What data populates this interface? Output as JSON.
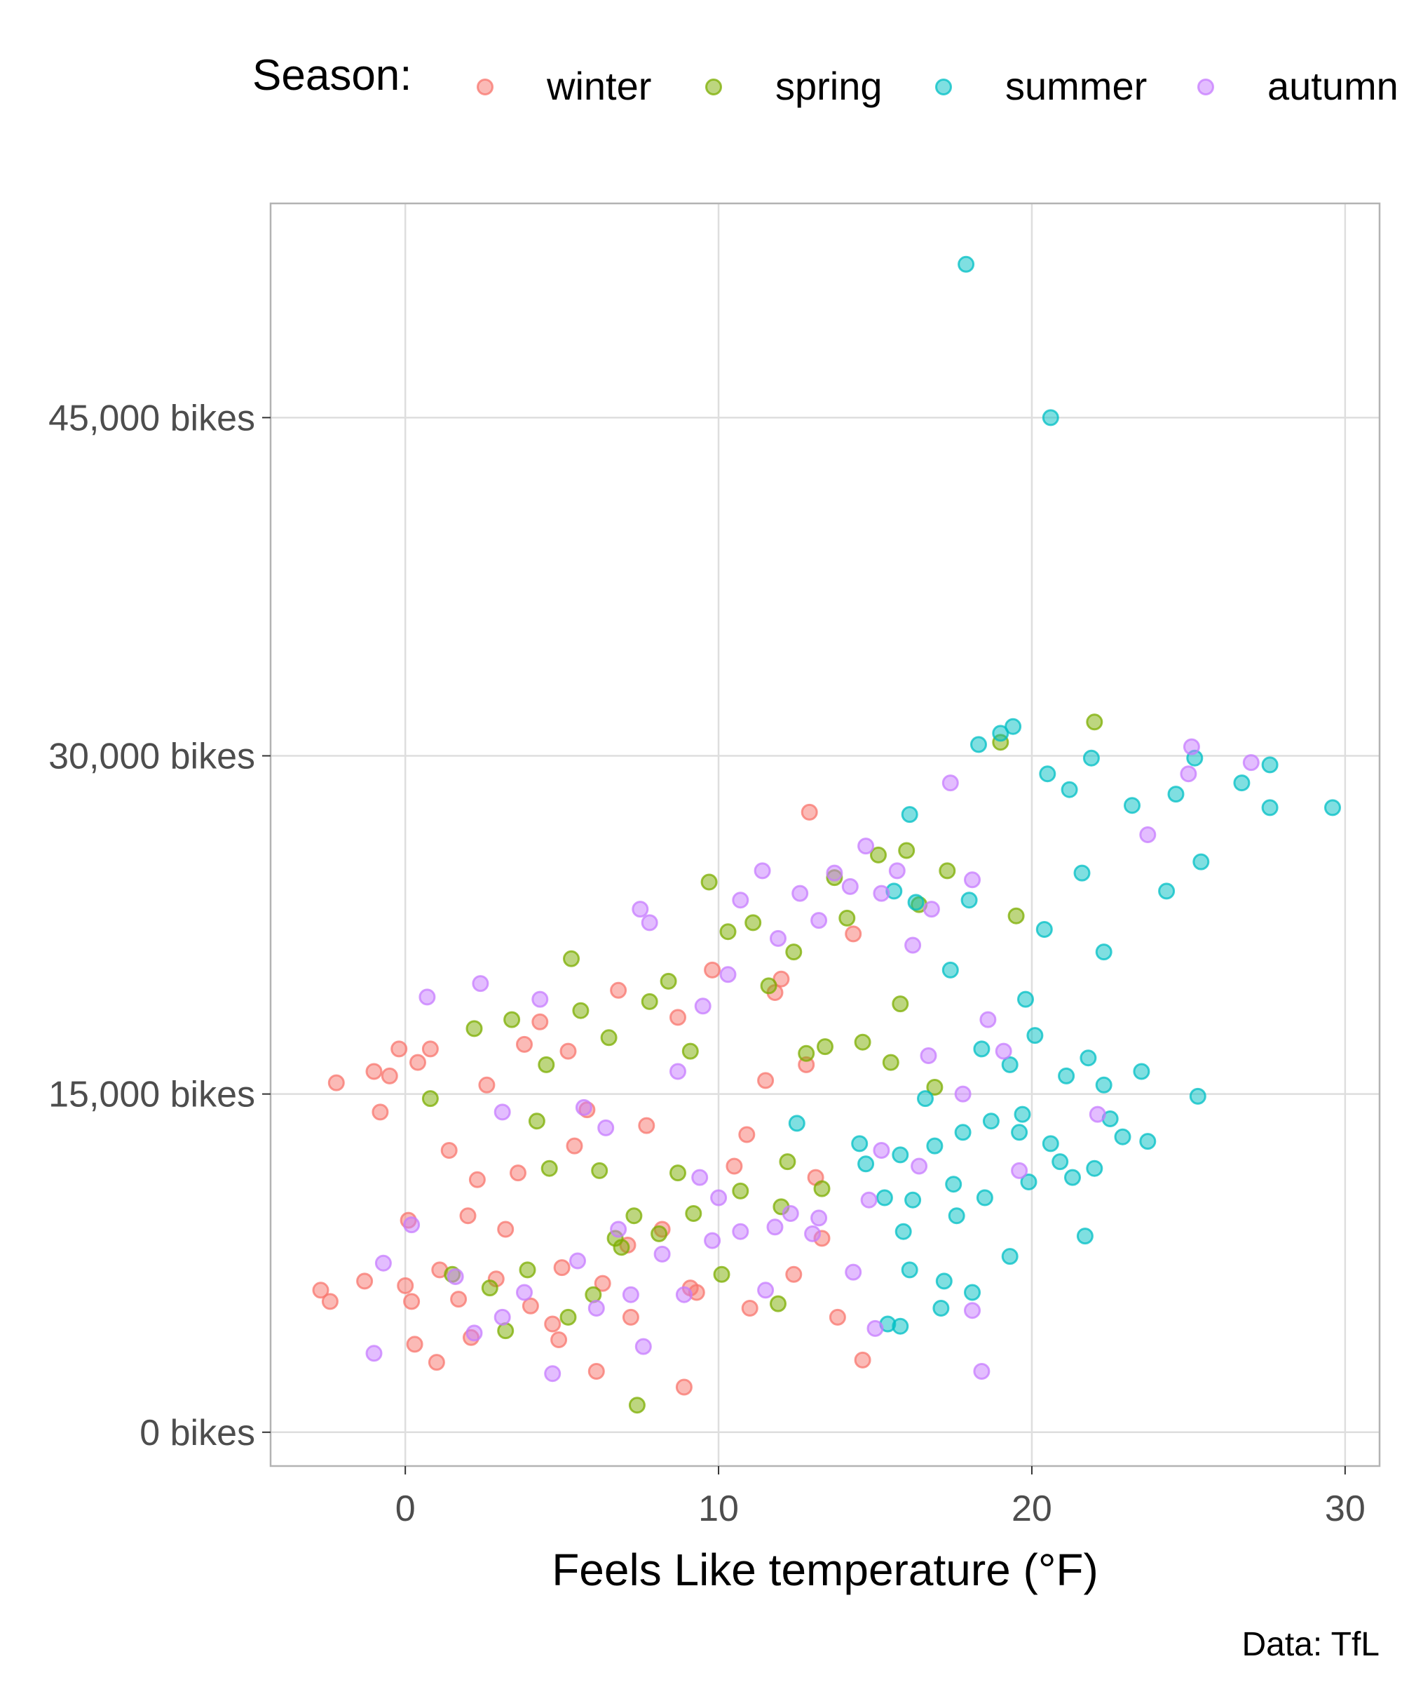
{
  "chart_data": {
    "type": "scatter",
    "xlabel": "Feels Like temperature (°F)",
    "ylabel": "",
    "caption": "Data: TfL",
    "xlim": [
      -4.3,
      31.1
    ],
    "ylim": [
      -1500,
      54500
    ],
    "x_ticks": [
      0,
      10,
      20,
      30
    ],
    "y_ticks": [
      0,
      15000,
      30000,
      45000
    ],
    "y_tick_labels": [
      "0 bikes",
      "15,000 bikes",
      "30,000 bikes",
      "45,000 bikes"
    ],
    "grid": true,
    "legend": {
      "title": "Season:",
      "position": "top"
    },
    "series": [
      {
        "name": "winter",
        "color": "#F8766D",
        "points": [
          [
            -2.7,
            6300
          ],
          [
            -2.4,
            5800
          ],
          [
            -2.2,
            15500
          ],
          [
            -1.3,
            6700
          ],
          [
            -1,
            16000
          ],
          [
            -0.8,
            14200
          ],
          [
            -0.5,
            15800
          ],
          [
            -0.2,
            17000
          ],
          [
            0,
            6500
          ],
          [
            0.2,
            5800
          ],
          [
            0.1,
            9400
          ],
          [
            0.4,
            16400
          ],
          [
            0.8,
            17000
          ],
          [
            1.1,
            7200
          ],
          [
            1.4,
            12500
          ],
          [
            1.7,
            5900
          ],
          [
            2,
            9600
          ],
          [
            2.3,
            11200
          ],
          [
            2.6,
            15400
          ],
          [
            2.9,
            6800
          ],
          [
            3.2,
            9000
          ],
          [
            3.6,
            11500
          ],
          [
            4,
            5600
          ],
          [
            4.3,
            18200
          ],
          [
            4.7,
            4800
          ],
          [
            5,
            7300
          ],
          [
            5.4,
            12700
          ],
          [
            5.8,
            14300
          ],
          [
            6.3,
            6600
          ],
          [
            6.8,
            19600
          ],
          [
            7.2,
            5100
          ],
          [
            7.7,
            13600
          ],
          [
            8.2,
            9000
          ],
          [
            8.7,
            18400
          ],
          [
            9.3,
            6200
          ],
          [
            9.8,
            20500
          ],
          [
            10.5,
            11800
          ],
          [
            11,
            5500
          ],
          [
            11.5,
            15600
          ],
          [
            12,
            20100
          ],
          [
            12.4,
            7000
          ],
          [
            12.8,
            16300
          ],
          [
            13.3,
            8600
          ],
          [
            13.8,
            5100
          ],
          [
            12.9,
            27500
          ],
          [
            14.6,
            3200
          ],
          [
            14.3,
            22100
          ],
          [
            10.9,
            13200
          ],
          [
            7.1,
            8300
          ],
          [
            1,
            3100
          ],
          [
            0.3,
            3900
          ],
          [
            3.8,
            17200
          ],
          [
            5.2,
            16900
          ],
          [
            6.1,
            2700
          ],
          [
            8.9,
            2000
          ],
          [
            11.8,
            19500
          ],
          [
            9.1,
            6400
          ],
          [
            2.1,
            4200
          ],
          [
            4.9,
            4100
          ],
          [
            13.1,
            11300
          ]
        ]
      },
      {
        "name": "spring",
        "color": "#7CAE00",
        "points": [
          [
            0.8,
            14800
          ],
          [
            1.5,
            7000
          ],
          [
            2.2,
            17900
          ],
          [
            2.7,
            6400
          ],
          [
            3.4,
            18300
          ],
          [
            3.9,
            7200
          ],
          [
            4.2,
            13800
          ],
          [
            4.6,
            11700
          ],
          [
            5.2,
            5100
          ],
          [
            5.6,
            18700
          ],
          [
            6,
            6100
          ],
          [
            6.5,
            17500
          ],
          [
            6.9,
            8200
          ],
          [
            7.4,
            1200
          ],
          [
            7.8,
            19100
          ],
          [
            8.1,
            8800
          ],
          [
            8.7,
            11500
          ],
          [
            9.1,
            16900
          ],
          [
            9.7,
            24400
          ],
          [
            10.3,
            22200
          ],
          [
            10.7,
            10700
          ],
          [
            11.1,
            22600
          ],
          [
            11.6,
            19800
          ],
          [
            12,
            10000
          ],
          [
            12.4,
            21300
          ],
          [
            12.8,
            16800
          ],
          [
            13.3,
            10800
          ],
          [
            13.7,
            24600
          ],
          [
            14.1,
            22800
          ],
          [
            14.6,
            17300
          ],
          [
            15.1,
            25600
          ],
          [
            15.5,
            16400
          ],
          [
            16,
            25800
          ],
          [
            16.4,
            23400
          ],
          [
            16.9,
            15300
          ],
          [
            17.3,
            24900
          ],
          [
            19,
            30600
          ],
          [
            19.5,
            22900
          ],
          [
            22,
            31500
          ],
          [
            8.4,
            20000
          ],
          [
            5.3,
            21000
          ],
          [
            3.2,
            4500
          ],
          [
            6.7,
            8600
          ],
          [
            9.2,
            9700
          ],
          [
            11.9,
            5700
          ],
          [
            4.5,
            16300
          ],
          [
            7.3,
            9600
          ],
          [
            10.1,
            7000
          ],
          [
            13.4,
            17100
          ],
          [
            15.8,
            19000
          ],
          [
            12.2,
            12000
          ],
          [
            6.2,
            11600
          ]
        ]
      },
      {
        "name": "summer",
        "color": "#00BFC4",
        "points": [
          [
            17.9,
            51800
          ],
          [
            20.6,
            45000
          ],
          [
            18.3,
            30500
          ],
          [
            19,
            31000
          ],
          [
            19.4,
            31300
          ],
          [
            20.5,
            29200
          ],
          [
            21.2,
            28500
          ],
          [
            21.9,
            29900
          ],
          [
            23.2,
            27800
          ],
          [
            24.6,
            28300
          ],
          [
            25.2,
            29900
          ],
          [
            26.7,
            28800
          ],
          [
            27.6,
            29600
          ],
          [
            27.6,
            27700
          ],
          [
            29.6,
            27700
          ],
          [
            25.4,
            25300
          ],
          [
            24.3,
            24000
          ],
          [
            22.3,
            21300
          ],
          [
            19.8,
            19200
          ],
          [
            17.4,
            20500
          ],
          [
            16.3,
            23500
          ],
          [
            16.1,
            27400
          ],
          [
            15.6,
            24000
          ],
          [
            18,
            23600
          ],
          [
            20.4,
            22300
          ],
          [
            21.6,
            24800
          ],
          [
            18.4,
            17000
          ],
          [
            19.3,
            16300
          ],
          [
            20.1,
            17600
          ],
          [
            21.1,
            15800
          ],
          [
            21.8,
            16600
          ],
          [
            22.3,
            15400
          ],
          [
            23.5,
            16000
          ],
          [
            25.3,
            14900
          ],
          [
            22.9,
            13100
          ],
          [
            23.7,
            12900
          ],
          [
            22,
            11700
          ],
          [
            19.9,
            11100
          ],
          [
            18.5,
            10400
          ],
          [
            17.5,
            11000
          ],
          [
            16.2,
            10300
          ],
          [
            15.3,
            10400
          ],
          [
            14.7,
            11900
          ],
          [
            15.8,
            12300
          ],
          [
            16.9,
            12700
          ],
          [
            17.8,
            13300
          ],
          [
            18.7,
            13800
          ],
          [
            19.7,
            14100
          ],
          [
            20.6,
            12800
          ],
          [
            21.3,
            11300
          ],
          [
            16.1,
            7200
          ],
          [
            17.2,
            6700
          ],
          [
            18.1,
            6200
          ],
          [
            15.4,
            4800
          ],
          [
            15.8,
            4700
          ],
          [
            21.7,
            8700
          ],
          [
            19.3,
            7800
          ],
          [
            17.1,
            5500
          ],
          [
            12.5,
            13700
          ],
          [
            16.6,
            14800
          ],
          [
            19.6,
            13300
          ],
          [
            14.5,
            12800
          ],
          [
            17.6,
            9600
          ],
          [
            20.9,
            12000
          ],
          [
            22.5,
            13900
          ],
          [
            15.9,
            8900
          ]
        ]
      },
      {
        "name": "autumn",
        "color": "#C77CFF",
        "points": [
          [
            0.2,
            9200
          ],
          [
            -0.7,
            7500
          ],
          [
            -1,
            3500
          ],
          [
            0.7,
            19300
          ],
          [
            2.4,
            19900
          ],
          [
            3.1,
            14200
          ],
          [
            4.3,
            19200
          ],
          [
            5.7,
            14400
          ],
          [
            6.4,
            13500
          ],
          [
            7.5,
            23200
          ],
          [
            7.8,
            22600
          ],
          [
            8.7,
            16000
          ],
          [
            9.5,
            18900
          ],
          [
            10.3,
            20300
          ],
          [
            10.7,
            23600
          ],
          [
            11.4,
            24900
          ],
          [
            11.9,
            21900
          ],
          [
            12.6,
            23900
          ],
          [
            13.2,
            22700
          ],
          [
            13.7,
            24800
          ],
          [
            14.2,
            24200
          ],
          [
            14.7,
            26000
          ],
          [
            15.2,
            23900
          ],
          [
            15.7,
            24900
          ],
          [
            16.2,
            21600
          ],
          [
            16.8,
            23200
          ],
          [
            17.4,
            28800
          ],
          [
            18.1,
            24500
          ],
          [
            18.6,
            18300
          ],
          [
            19.1,
            16900
          ],
          [
            19.6,
            11600
          ],
          [
            18.4,
            2700
          ],
          [
            18.1,
            5400
          ],
          [
            15,
            4600
          ],
          [
            14.3,
            7100
          ],
          [
            13,
            8800
          ],
          [
            12.3,
            9700
          ],
          [
            11.5,
            6300
          ],
          [
            10.7,
            8900
          ],
          [
            10,
            10400
          ],
          [
            9.4,
            11300
          ],
          [
            8.9,
            6100
          ],
          [
            8.2,
            7900
          ],
          [
            7.6,
            3800
          ],
          [
            6.8,
            9000
          ],
          [
            6.1,
            5500
          ],
          [
            5.5,
            7600
          ],
          [
            4.7,
            2600
          ],
          [
            3.8,
            6200
          ],
          [
            3.1,
            5100
          ],
          [
            2.2,
            4400
          ],
          [
            1.6,
            6900
          ],
          [
            22.1,
            14100
          ],
          [
            23.7,
            26500
          ],
          [
            25.1,
            30400
          ],
          [
            27,
            29700
          ],
          [
            25,
            29200
          ],
          [
            16.7,
            16700
          ],
          [
            17.8,
            15000
          ],
          [
            13.2,
            9500
          ],
          [
            14.8,
            10300
          ],
          [
            11.8,
            9100
          ],
          [
            16.4,
            11800
          ],
          [
            15.2,
            12500
          ],
          [
            9.8,
            8500
          ],
          [
            7.2,
            6100
          ]
        ]
      }
    ]
  }
}
